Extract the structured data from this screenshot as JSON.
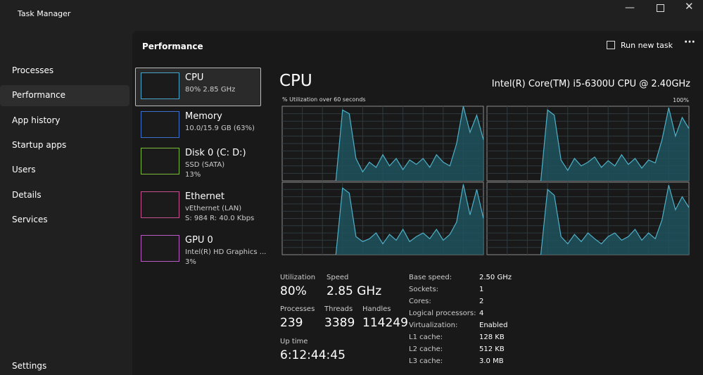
{
  "window": {
    "title": "Task Manager"
  },
  "nav": [
    "Processes",
    "Performance",
    "App history",
    "Startup apps",
    "Users",
    "Details",
    "Services"
  ],
  "settings": "Settings",
  "header": {
    "title": "Performance",
    "action": "Run new task"
  },
  "devices": [
    {
      "name": "CPU",
      "lines": [
        "80%  2.85 GHz"
      ]
    },
    {
      "name": "Memory",
      "lines": [
        "10.0/15.9 GB (63%)"
      ]
    },
    {
      "name": "Disk 0 (C: D:)",
      "lines": [
        "SSD (SATA)",
        "13%"
      ]
    },
    {
      "name": "Ethernet",
      "lines": [
        "vEthernet (LAN)",
        "S: 984  R: 40.0 Kbps"
      ]
    },
    {
      "name": "GPU 0",
      "lines": [
        "Intel(R) HD Graphics ...",
        "3%"
      ]
    }
  ],
  "cpu": {
    "title": "CPU",
    "model": "Intel(R) Core(TM) i5-6300U CPU @ 2.40GHz",
    "graph_label": "% Utilization over 60 seconds",
    "ylim": [
      0,
      100
    ],
    "yticks": [
      {
        "value": 100,
        "label": "100%"
      }
    ],
    "cores": [
      [
        null,
        null,
        null,
        null,
        null,
        null,
        null,
        null,
        0,
        95,
        90,
        30,
        12,
        25,
        18,
        35,
        20,
        30,
        15,
        28,
        22,
        30,
        18,
        35,
        25,
        20,
        50,
        100,
        65,
        88,
        55
      ],
      [
        null,
        null,
        null,
        null,
        null,
        null,
        null,
        null,
        0,
        95,
        88,
        28,
        14,
        30,
        20,
        25,
        32,
        18,
        27,
        20,
        35,
        22,
        30,
        17,
        28,
        24,
        55,
        98,
        60,
        85,
        70
      ],
      [
        null,
        null,
        null,
        null,
        null,
        null,
        null,
        null,
        0,
        92,
        85,
        25,
        18,
        22,
        30,
        15,
        28,
        20,
        35,
        18,
        25,
        30,
        22,
        35,
        20,
        28,
        45,
        97,
        55,
        90,
        50
      ],
      [
        null,
        null,
        null,
        null,
        null,
        null,
        null,
        null,
        0,
        90,
        82,
        25,
        15,
        28,
        18,
        30,
        22,
        15,
        25,
        30,
        20,
        25,
        35,
        20,
        30,
        22,
        48,
        96,
        62,
        80,
        65
      ]
    ],
    "stats": [
      {
        "label": "Utilization",
        "value": "80%"
      },
      {
        "label": "Speed",
        "value": "2.85 GHz"
      },
      {
        "label": "Processes",
        "value": "239"
      },
      {
        "label": "Threads",
        "value": "3389"
      },
      {
        "label": "Handles",
        "value": "114249"
      },
      {
        "label": "Up time",
        "value": "6:12:44:45"
      }
    ],
    "specs": [
      [
        "Base speed:",
        "2.50 GHz"
      ],
      [
        "Sockets:",
        "1"
      ],
      [
        "Cores:",
        "2"
      ],
      [
        "Logical processors:",
        "4"
      ],
      [
        "Virtualization:",
        "Enabled"
      ],
      [
        "L1 cache:",
        "128 KB"
      ],
      [
        "L2 cache:",
        "512 KB"
      ],
      [
        "L3 cache:",
        "3.0 MB"
      ]
    ]
  }
}
